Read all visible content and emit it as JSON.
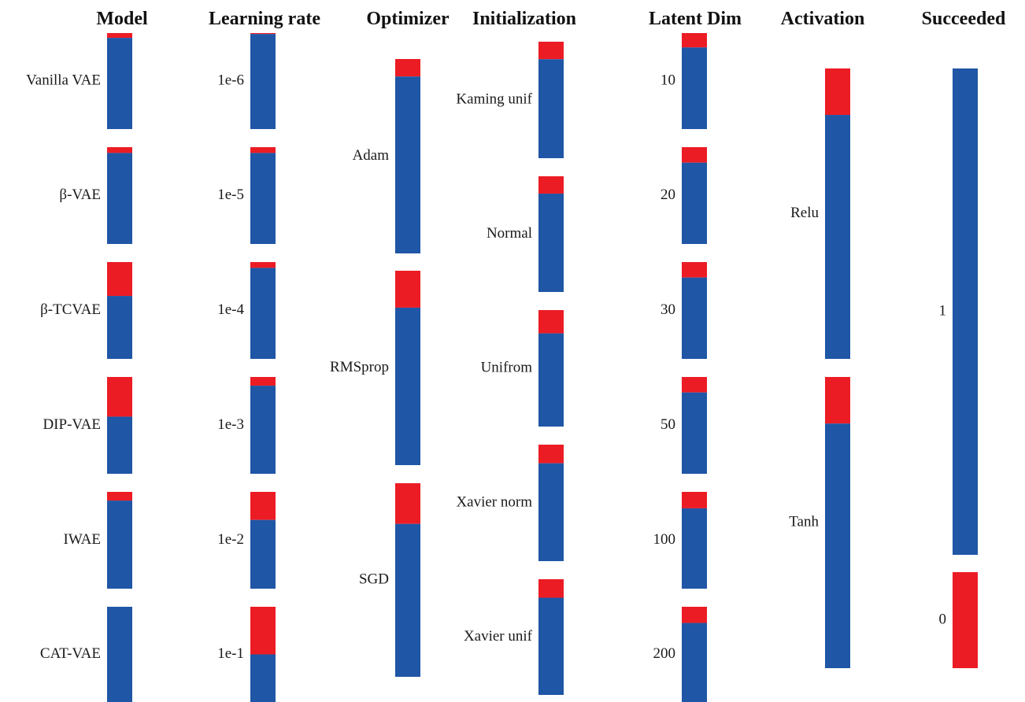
{
  "chart_data": {
    "type": "parallel-categories",
    "colors": {
      "succeeded": "#1f56a6",
      "failed": "#ec1c24"
    },
    "columns": [
      {
        "title": "Model",
        "categories": [
          {
            "label": "Vanilla VAE",
            "succeeded": 0.95,
            "failed": 0.05
          },
          {
            "label": "β-VAE",
            "succeeded": 0.94,
            "failed": 0.06
          },
          {
            "label": "β-TCVAE",
            "succeeded": 0.65,
            "failed": 0.35
          },
          {
            "label": "DIP-VAE",
            "succeeded": 0.59,
            "failed": 0.41
          },
          {
            "label": "IWAE",
            "succeeded": 0.91,
            "failed": 0.09
          },
          {
            "label": "CAT-VAE",
            "succeeded": 1.0,
            "failed": 0.0
          }
        ]
      },
      {
        "title": "Learning rate",
        "categories": [
          {
            "label": "1e-6",
            "succeeded": 0.99,
            "failed": 0.01
          },
          {
            "label": "1e-5",
            "succeeded": 0.94,
            "failed": 0.06
          },
          {
            "label": "1e-4",
            "succeeded": 0.94,
            "failed": 0.06
          },
          {
            "label": "1e-3",
            "succeeded": 0.91,
            "failed": 0.09
          },
          {
            "label": "1e-2",
            "succeeded": 0.71,
            "failed": 0.29
          },
          {
            "label": "1e-1",
            "succeeded": 0.5,
            "failed": 0.5
          }
        ]
      },
      {
        "title": "Optimizer",
        "categories": [
          {
            "label": "Adam",
            "succeeded": 0.91,
            "failed": 0.09
          },
          {
            "label": "RMSprop",
            "succeeded": 0.81,
            "failed": 0.19
          },
          {
            "label": "SGD",
            "succeeded": 0.79,
            "failed": 0.21
          }
        ]
      },
      {
        "title": "Initialization",
        "categories": [
          {
            "label": "Kaming unif",
            "succeeded": 0.85,
            "failed": 0.15
          },
          {
            "label": "Normal",
            "succeeded": 0.85,
            "failed": 0.15
          },
          {
            "label": "Unifrom",
            "succeeded": 0.8,
            "failed": 0.2
          },
          {
            "label": "Xavier norm",
            "succeeded": 0.84,
            "failed": 0.16
          },
          {
            "label": "Xavier unif",
            "succeeded": 0.84,
            "failed": 0.16
          }
        ]
      },
      {
        "title": "Latent Dim",
        "categories": [
          {
            "label": "10",
            "succeeded": 0.85,
            "failed": 0.15
          },
          {
            "label": "20",
            "succeeded": 0.84,
            "failed": 0.16
          },
          {
            "label": "30",
            "succeeded": 0.84,
            "failed": 0.16
          },
          {
            "label": "50",
            "succeeded": 0.84,
            "failed": 0.16
          },
          {
            "label": "100",
            "succeeded": 0.83,
            "failed": 0.17
          },
          {
            "label": "200",
            "succeeded": 0.83,
            "failed": 0.17
          }
        ]
      },
      {
        "title": "Activation",
        "categories": [
          {
            "label": "Relu",
            "succeeded": 0.84,
            "failed": 0.16
          },
          {
            "label": "Tanh",
            "succeeded": 0.84,
            "failed": 0.16
          }
        ]
      },
      {
        "title": "Succeeded",
        "categories": [
          {
            "label": "1",
            "succeeded": 1.0,
            "failed": 0.0
          },
          {
            "label": "0",
            "succeeded": 0.0,
            "failed": 1.0
          }
        ]
      }
    ]
  }
}
